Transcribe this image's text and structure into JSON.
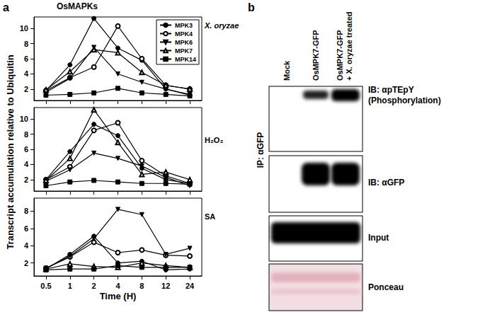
{
  "figure": {
    "label": "a",
    "title": "OsMAPKs",
    "ylabel": "Transcript accumulation relative to Ubiquitin"
  },
  "chart_data": [
    {
      "type": "line",
      "title": "X. oryzae",
      "categories": [
        "0.5",
        "1",
        "2",
        "4",
        "8",
        "12",
        "24"
      ],
      "ylim": [
        0.5,
        11.5
      ],
      "yticks": [
        2,
        4,
        6,
        8,
        10
      ],
      "legend": "upper right",
      "tick_labels": "y",
      "series": [
        {
          "name": "MPK3",
          "color": "#000000",
          "marker": "circle",
          "values": [
            1.8,
            5.2,
            11.3,
            7.4,
            5.8,
            2.0,
            1.2
          ]
        },
        {
          "name": "MPK4",
          "color": "#000000",
          "marker": "open_circle",
          "values": [
            1.8,
            3.5,
            4.9,
            10.3,
            6.0,
            2.5,
            2.0
          ]
        },
        {
          "name": "MPK6",
          "color": "#000000",
          "marker": "triangle_down",
          "values": [
            1.6,
            3.4,
            7.5,
            4.0,
            2.9,
            2.0,
            1.3
          ]
        },
        {
          "name": "MPK7",
          "color": "#000000",
          "marker": "open_triangle",
          "values": [
            1.9,
            4.3,
            7.2,
            6.8,
            4.2,
            2.5,
            2.0
          ]
        },
        {
          "name": "MPK14",
          "color": "#000000",
          "marker": "square",
          "values": [
            1.2,
            1.3,
            1.5,
            2.1,
            1.5,
            1.3,
            1.1
          ]
        }
      ]
    },
    {
      "type": "line",
      "title": "H₂O₂",
      "categories": [
        "0.5",
        "1",
        "2",
        "4",
        "8",
        "12",
        "24"
      ],
      "ylim": [
        0.5,
        11.5
      ],
      "yticks": [
        2,
        4,
        6,
        8,
        10
      ],
      "tick_labels": "y",
      "series": [
        {
          "name": "MPK3",
          "color": "#000000",
          "marker": "circle",
          "values": [
            2.0,
            5.7,
            9.3,
            7.8,
            3.5,
            2.0,
            1.5
          ]
        },
        {
          "name": "MPK4",
          "color": "#000000",
          "marker": "open_circle",
          "values": [
            2.0,
            3.7,
            8.5,
            9.5,
            4.5,
            2.5,
            1.5
          ]
        },
        {
          "name": "MPK6",
          "color": "#000000",
          "marker": "triangle_down",
          "values": [
            1.8,
            3.3,
            5.5,
            4.8,
            3.8,
            2.3,
            1.2
          ]
        },
        {
          "name": "MPK7",
          "color": "#000000",
          "marker": "open_triangle",
          "values": [
            1.9,
            4.8,
            11.2,
            6.9,
            2.7,
            3.0,
            2.0
          ]
        },
        {
          "name": "MPK14",
          "color": "#000000",
          "marker": "square",
          "values": [
            1.2,
            1.7,
            1.9,
            1.7,
            1.5,
            1.5,
            1.4
          ]
        }
      ]
    },
    {
      "type": "line",
      "title": "SA",
      "xlabel": "Time (H)",
      "categories": [
        "0.5",
        "1",
        "2",
        "4",
        "8",
        "12",
        "24"
      ],
      "ylim": [
        0.5,
        9.5
      ],
      "yticks": [
        2,
        4,
        6,
        8
      ],
      "series": [
        {
          "name": "MPK3",
          "color": "#000000",
          "marker": "circle",
          "values": [
            1.3,
            3.0,
            5.1,
            2.0,
            2.2,
            1.2,
            1.3
          ]
        },
        {
          "name": "MPK4",
          "color": "#000000",
          "marker": "open_circle",
          "values": [
            1.4,
            2.7,
            4.4,
            3.2,
            3.5,
            2.9,
            2.8
          ]
        },
        {
          "name": "MPK6",
          "color": "#000000",
          "marker": "triangle_down",
          "values": [
            1.4,
            2.8,
            4.8,
            8.2,
            7.6,
            3.0,
            3.7
          ]
        },
        {
          "name": "MPK7",
          "color": "#000000",
          "marker": "open_triangle",
          "values": [
            1.3,
            1.9,
            1.6,
            1.5,
            2.0,
            1.7,
            1.5
          ]
        },
        {
          "name": "MPK14",
          "color": "#000000",
          "marker": "square",
          "values": [
            1.2,
            1.3,
            1.3,
            1.7,
            1.5,
            1.5,
            1.5
          ]
        }
      ]
    }
  ],
  "panel_b": {
    "label": "b",
    "lanes": [
      [
        "Mock"
      ],
      [
        "OsMPK7-GFP"
      ],
      [
        "OsMPK7-GFP",
        "+ X. oryzae treated"
      ]
    ],
    "ip_label": "IP: αGFP",
    "rows": [
      {
        "label": [
          "IB: αpTEpY",
          "(Phosphorylation)"
        ]
      },
      {
        "label": [
          "IB: αGFP"
        ]
      },
      {
        "label": [
          "Input"
        ]
      },
      {
        "label": [
          "Ponceau"
        ]
      }
    ]
  }
}
